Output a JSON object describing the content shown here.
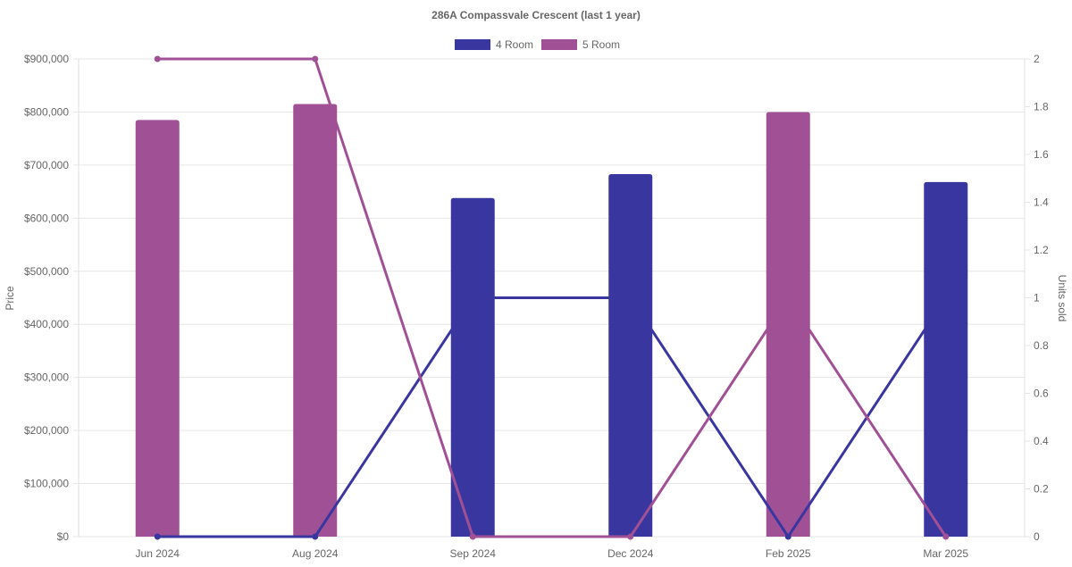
{
  "chart_data": {
    "type": "bar",
    "title": "286A Compassvale Crescent (last 1 year)",
    "categories": [
      "Jun 2024",
      "Aug 2024",
      "Sep 2024",
      "Dec 2024",
      "Feb 2025",
      "Mar 2025"
    ],
    "y_left": {
      "label": "Price",
      "range": [
        0,
        900000
      ],
      "ticks": [
        "$0",
        "$100,000",
        "$200,000",
        "$300,000",
        "$400,000",
        "$500,000",
        "$600,000",
        "$700,000",
        "$800,000",
        "$900,000"
      ]
    },
    "y_right": {
      "label": "Units sold",
      "range": [
        0,
        2
      ],
      "ticks": [
        "0",
        "0.2",
        "0.4",
        "0.6",
        "0.8",
        "1",
        "1.2",
        "1.4",
        "1.6",
        "1.8",
        "2"
      ]
    },
    "grid": true,
    "legend_position": "top-center",
    "series": [
      {
        "name": "4 Room",
        "color": "#3a36a0",
        "price_bars": [
          null,
          null,
          638000,
          683000,
          null,
          668000
        ],
        "units_sold": [
          0,
          0,
          1,
          1,
          0,
          1
        ]
      },
      {
        "name": "5 Room",
        "color": "#a05195",
        "price_bars": [
          785000,
          815000,
          null,
          null,
          800000,
          null
        ],
        "units_sold": [
          2,
          2,
          0,
          0,
          1,
          0
        ]
      }
    ]
  }
}
